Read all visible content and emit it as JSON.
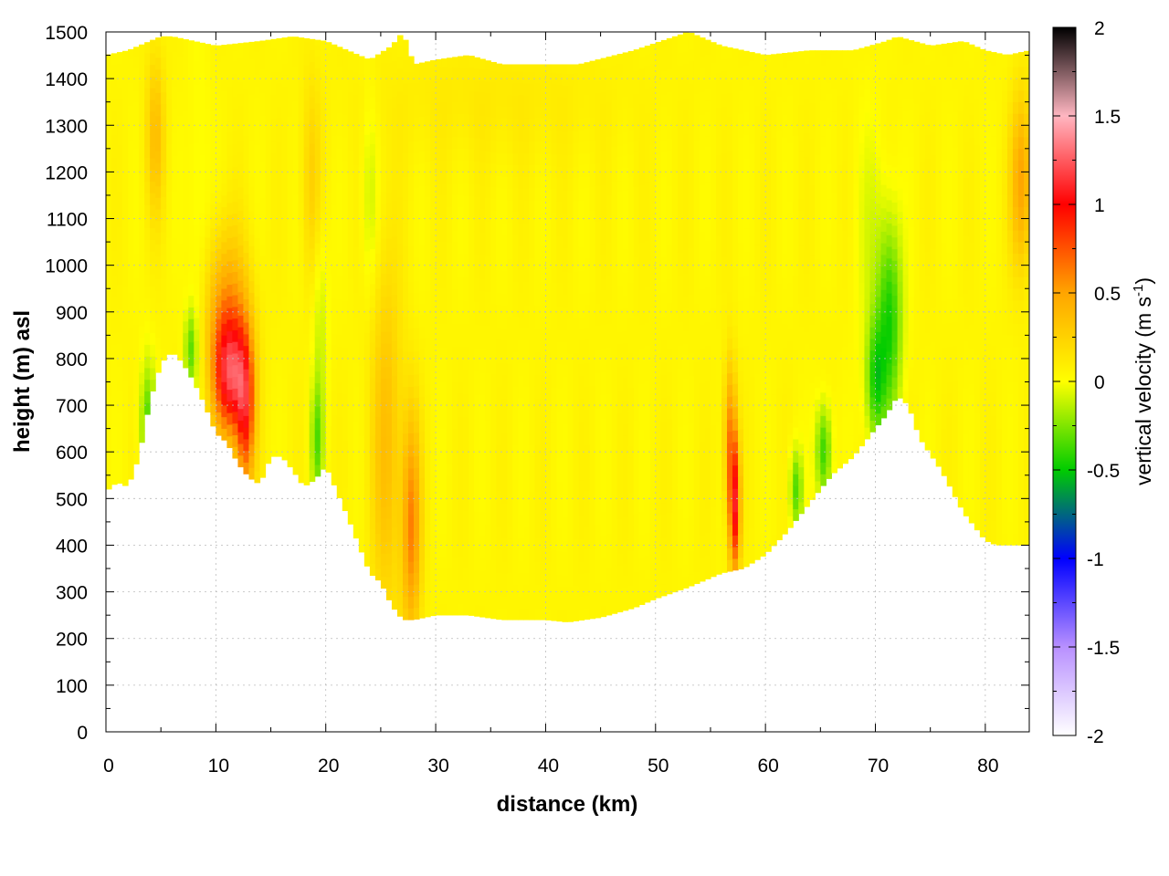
{
  "chart_data": {
    "type": "heatmap",
    "title": "",
    "xlabel": "distance (km)",
    "ylabel": "height (m) asl",
    "xlim": [
      0,
      84
    ],
    "ylim": [
      0,
      1500
    ],
    "x_ticks": [
      "0",
      "10",
      "20",
      "30",
      "40",
      "50",
      "60",
      "70",
      "80"
    ],
    "y_ticks": [
      "0",
      "100",
      "200",
      "300",
      "400",
      "500",
      "600",
      "700",
      "800",
      "900",
      "1000",
      "1100",
      "1200",
      "1300",
      "1400",
      "1500"
    ],
    "grid": true,
    "colorbar": {
      "label_main": "vertical velocity (m s",
      "label_sup": "-1",
      "label_end": ")",
      "range": [
        -2,
        2
      ],
      "ticks": [
        "-2",
        "-1.5",
        "-1",
        "-0.5",
        "0",
        "0.5",
        "1",
        "1.5",
        "2"
      ],
      "colors": [
        "#ffffff",
        "#b890ff",
        "#0000ff",
        "#00cc00",
        "#ffff00",
        "#ffa500",
        "#ff0000",
        "#ffb6c1",
        "#000000"
      ]
    },
    "background_value": 0.05,
    "terrain": {
      "x": [
        0,
        1,
        2,
        3,
        4,
        5,
        6,
        7,
        8,
        9,
        10,
        11,
        12,
        13,
        14,
        15,
        16,
        17,
        18,
        19,
        20,
        22,
        24,
        25,
        26,
        27,
        28,
        30,
        33,
        36,
        40,
        42,
        45,
        48,
        50,
        53,
        56,
        58,
        60,
        62,
        64,
        66,
        68,
        70,
        71,
        72,
        73,
        74,
        76,
        78,
        80,
        81,
        82,
        84
      ],
      "height": [
        515,
        535,
        525,
        590,
        710,
        790,
        815,
        790,
        750,
        700,
        640,
        620,
        575,
        545,
        530,
        590,
        590,
        560,
        525,
        540,
        570,
        460,
        340,
        320,
        270,
        240,
        240,
        250,
        250,
        240,
        240,
        235,
        245,
        265,
        285,
        310,
        340,
        350,
        380,
        430,
        490,
        550,
        590,
        650,
        680,
        720,
        700,
        630,
        560,
        470,
        410,
        400,
        400,
        400
      ]
    },
    "top": {
      "x": [
        0,
        2,
        4,
        5,
        6,
        8,
        10,
        14,
        17,
        20,
        22,
        24,
        26,
        27,
        28,
        30,
        33,
        36,
        40,
        43,
        48,
        53,
        56,
        60,
        64,
        68,
        71,
        72,
        75,
        78,
        80,
        82,
        84
      ],
      "height": [
        1450,
        1460,
        1480,
        1490,
        1490,
        1480,
        1470,
        1480,
        1490,
        1480,
        1460,
        1440,
        1470,
        1500,
        1430,
        1440,
        1450,
        1430,
        1430,
        1430,
        1460,
        1500,
        1470,
        1450,
        1460,
        1460,
        1480,
        1490,
        1470,
        1480,
        1460,
        1450,
        1460
      ]
    },
    "anomalies": [
      {
        "x": 11.3,
        "y": 760,
        "sx": 1.1,
        "sy": 90,
        "value": 0.95
      },
      {
        "x": 12.7,
        "y": 680,
        "sx": 0.6,
        "sy": 120,
        "value": 0.75
      },
      {
        "x": 11.0,
        "y": 900,
        "sx": 1.4,
        "sy": 120,
        "value": 0.45
      },
      {
        "x": 27.8,
        "y": 440,
        "sx": 0.6,
        "sy": 170,
        "value": 0.55
      },
      {
        "x": 25.5,
        "y": 620,
        "sx": 1.0,
        "sy": 280,
        "value": 0.3
      },
      {
        "x": 57.2,
        "y": 480,
        "sx": 0.35,
        "sy": 100,
        "value": 0.95
      },
      {
        "x": 56.8,
        "y": 640,
        "sx": 0.4,
        "sy": 110,
        "value": 0.5
      },
      {
        "x": 4.5,
        "y": 1280,
        "sx": 0.6,
        "sy": 120,
        "value": 0.3
      },
      {
        "x": 83.3,
        "y": 1180,
        "sx": 0.7,
        "sy": 130,
        "value": 0.45
      },
      {
        "x": 18.7,
        "y": 1180,
        "sx": 0.6,
        "sy": 150,
        "value": 0.2
      },
      {
        "x": 71.3,
        "y": 880,
        "sx": 0.8,
        "sy": 150,
        "value": -0.5
      },
      {
        "x": 70.0,
        "y": 750,
        "sx": 0.6,
        "sy": 90,
        "value": -0.45
      },
      {
        "x": 65.3,
        "y": 600,
        "sx": 0.5,
        "sy": 70,
        "value": -0.45
      },
      {
        "x": 62.8,
        "y": 520,
        "sx": 0.4,
        "sy": 60,
        "value": -0.4
      },
      {
        "x": 3.8,
        "y": 650,
        "sx": 0.5,
        "sy": 100,
        "value": -0.4
      },
      {
        "x": 7.7,
        "y": 820,
        "sx": 0.4,
        "sy": 60,
        "value": -0.35
      },
      {
        "x": 19.2,
        "y": 620,
        "sx": 0.4,
        "sy": 90,
        "value": -0.35
      },
      {
        "x": 19.5,
        "y": 880,
        "sx": 0.5,
        "sy": 150,
        "value": -0.15
      },
      {
        "x": 24.0,
        "y": 1150,
        "sx": 0.5,
        "sy": 150,
        "value": -0.15
      },
      {
        "x": 8.5,
        "y": 1000,
        "sx": 0.7,
        "sy": 300,
        "value": -0.1
      },
      {
        "x": 69.5,
        "y": 1050,
        "sx": 1.0,
        "sy": 200,
        "value": -0.1
      },
      {
        "x": 35.0,
        "y": 1350,
        "sx": 8.0,
        "sy": 100,
        "value": 0.07
      }
    ]
  }
}
